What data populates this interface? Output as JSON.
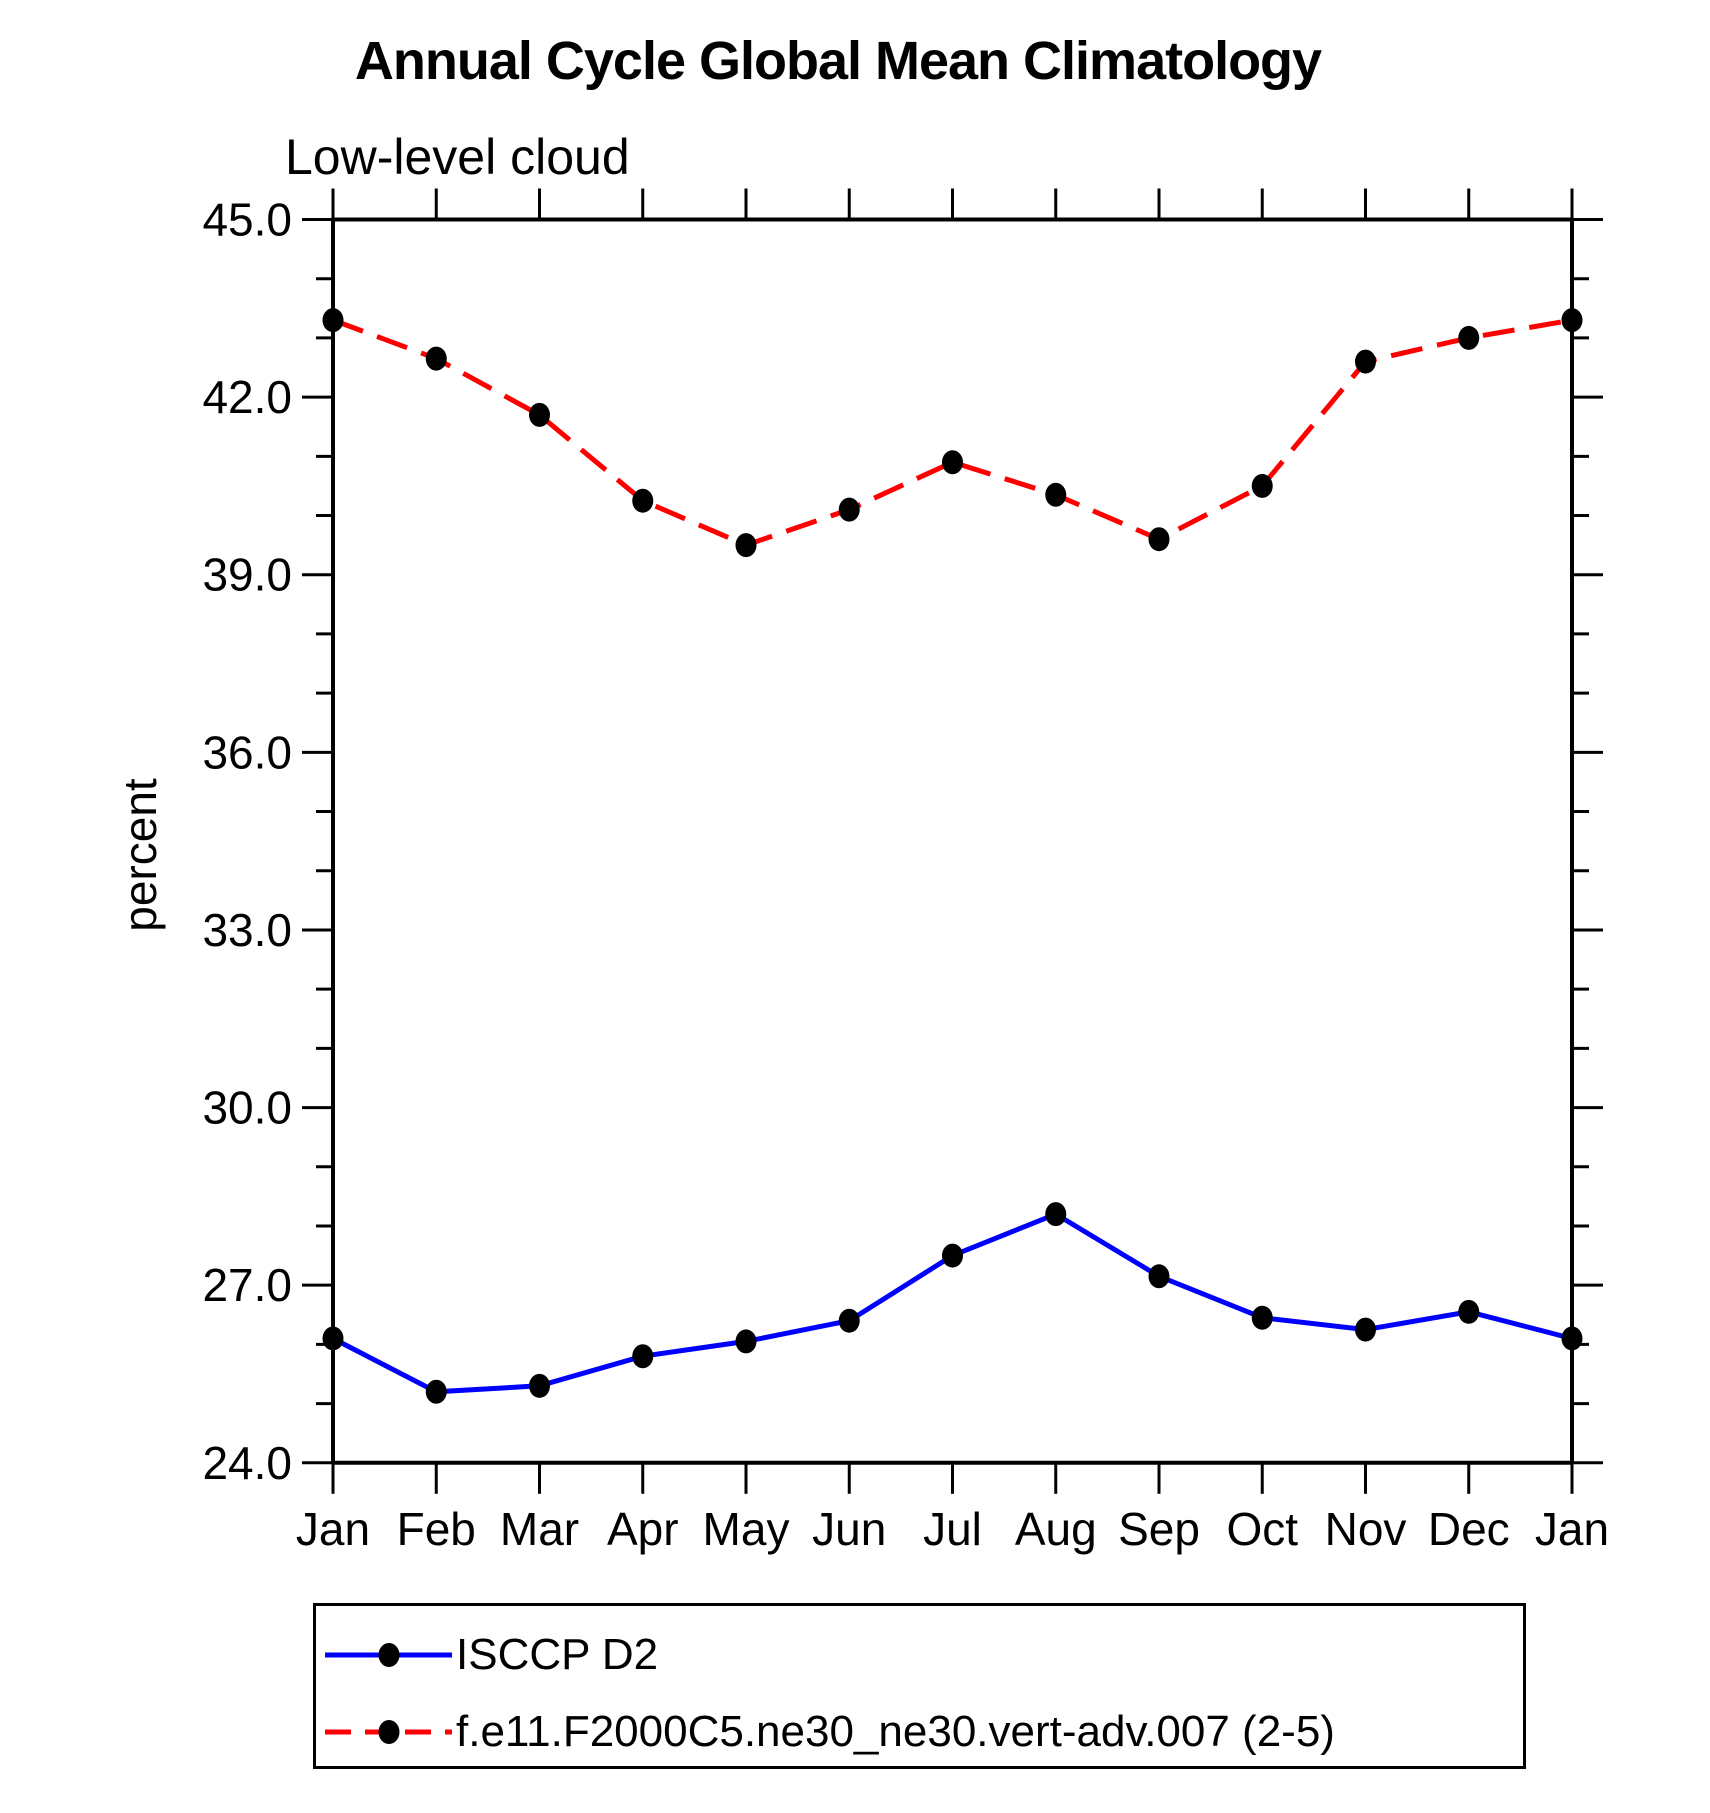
{
  "chart_data": {
    "type": "line",
    "title": "Annual Cycle Global Mean Climatology",
    "subtitle": "Low-level cloud",
    "ylabel": "percent",
    "xlabel": "",
    "categories": [
      "Jan",
      "Feb",
      "Mar",
      "Apr",
      "May",
      "Jun",
      "Jul",
      "Aug",
      "Sep",
      "Oct",
      "Nov",
      "Dec",
      "Jan"
    ],
    "ylim": [
      24.0,
      45.0
    ],
    "ytick_values": [
      45.0,
      42.0,
      39.0,
      36.0,
      33.0,
      30.0,
      27.0,
      24.0
    ],
    "ytick_labels": [
      "45.0",
      "42.0",
      "39.0",
      "36.0",
      "33.0",
      "30.0",
      "27.0",
      "24.0"
    ],
    "yminor_step": 1.0,
    "grid": false,
    "legend_position": "bottom-left-box",
    "frame_color": "#000000",
    "marker_shape": "filled-circle",
    "series": [
      {
        "name": "ISCCP D2",
        "color": "#0000ff",
        "line_style": "solid",
        "marker_color": "#000000",
        "values": [
          26.1,
          25.2,
          25.3,
          25.8,
          26.05,
          26.4,
          27.5,
          28.2,
          27.15,
          26.45,
          26.25,
          26.55,
          26.1
        ]
      },
      {
        "name": "f.e11.F2000C5.ne30_ne30.vert-adv.007 (2-5)",
        "color": "#ff0000",
        "line_style": "dashed",
        "marker_color": "#000000",
        "values": [
          43.3,
          42.65,
          41.7,
          40.25,
          39.5,
          40.1,
          40.9,
          40.35,
          39.6,
          40.5,
          42.6,
          43.0,
          43.3
        ]
      }
    ]
  }
}
